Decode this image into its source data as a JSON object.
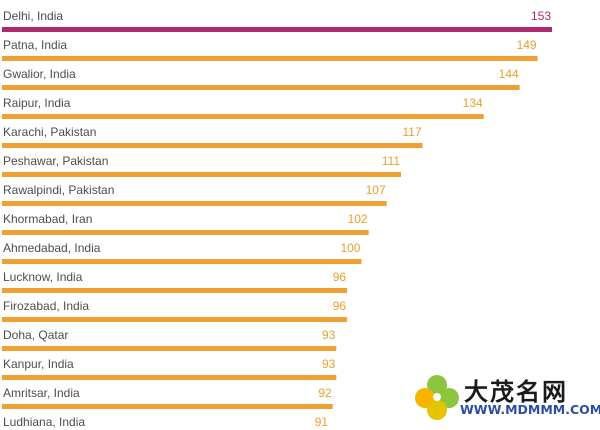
{
  "chart_data": {
    "type": "bar",
    "orientation": "horizontal",
    "categories": [
      "Delhi, India",
      "Patna, India",
      "Gwalior, India",
      "Raipur, India",
      "Karachi, Pakistan",
      "Peshawar, Pakistan",
      "Rawalpindi, Pakistan",
      "Khormabad, Iran",
      "Ahmedabad, India",
      "Lucknow, India",
      "Firozabad, India",
      "Doha, Qatar",
      "Kanpur, India",
      "Amritsar, India",
      "Ludhiana, India"
    ],
    "values": [
      153,
      149,
      144,
      134,
      117,
      111,
      107,
      102,
      100,
      96,
      96,
      93,
      93,
      92,
      91
    ],
    "highlight_index": 0,
    "title": "",
    "xlabel": "",
    "ylabel": "",
    "xlim": [
      0,
      153
    ],
    "grid": false,
    "legend": "none",
    "colors": {
      "bar": "#f0a032",
      "bar_highlight": "#b0286e",
      "value_label": "#e8a02a",
      "value_label_highlight": "#b0286e",
      "category_label": "#4d4d4d"
    }
  },
  "watermark": {
    "text_cn": "大茂名网",
    "url": "WWW.MDMMM.COM",
    "icon": "clover-logo-icon"
  }
}
